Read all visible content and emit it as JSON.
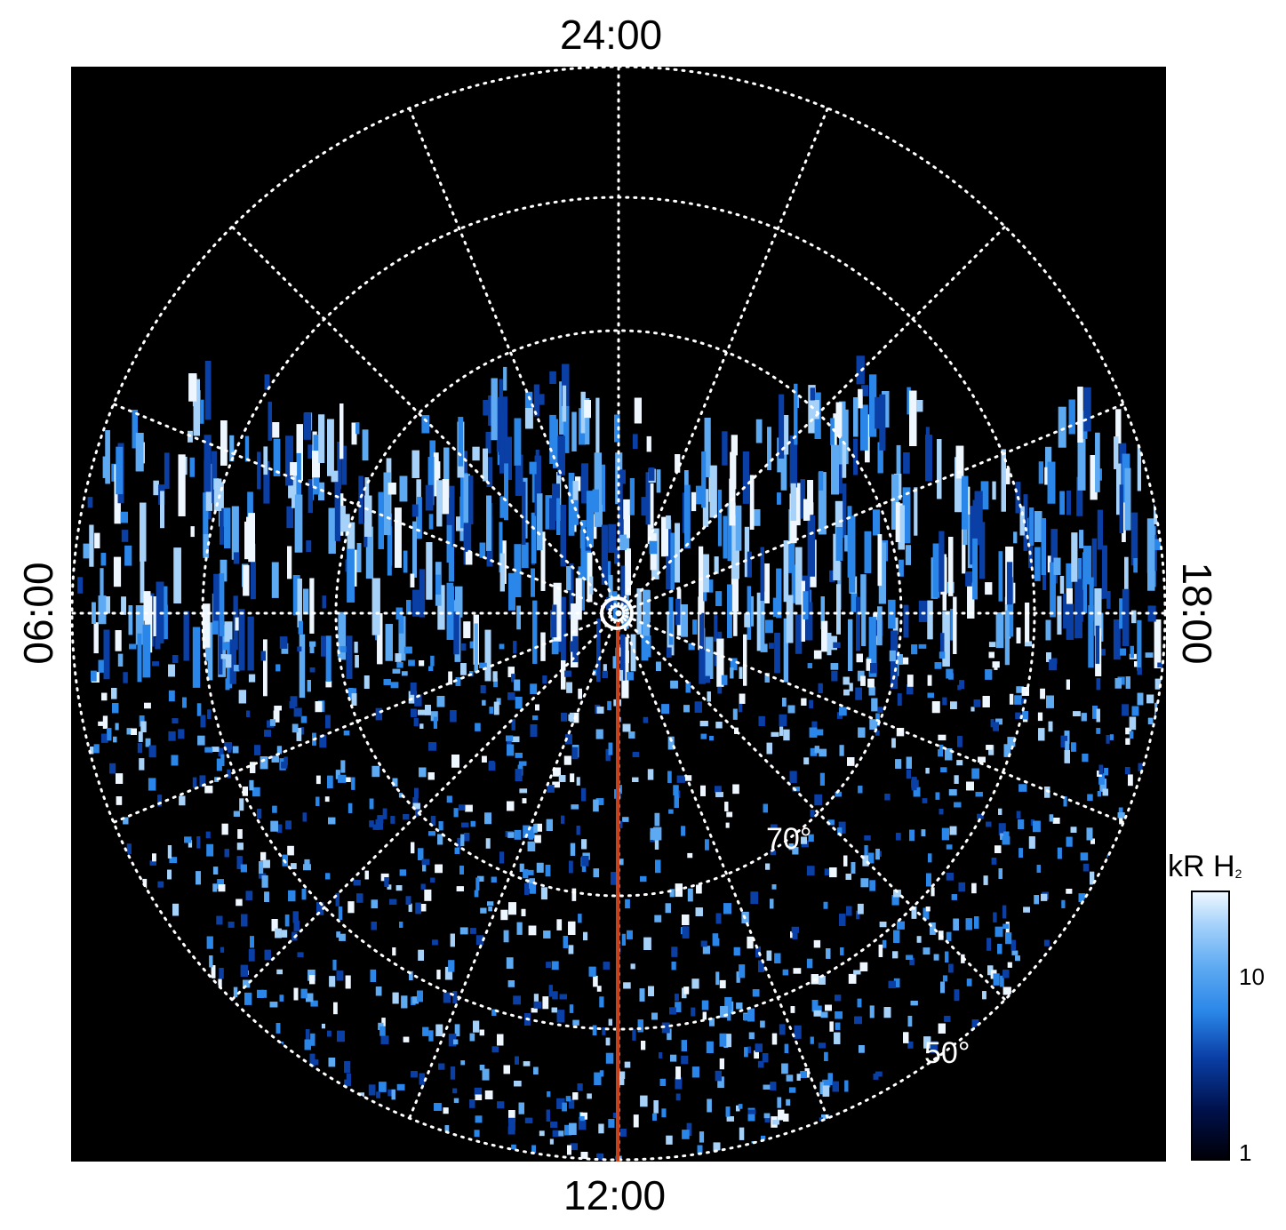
{
  "local_time_labels": {
    "top": "24:00",
    "bottom": "12:00",
    "left": "06:00",
    "right": "18:00"
  },
  "latitude_labels": {
    "inner": "70°",
    "outer": "50°"
  },
  "colorbar": {
    "title_main": "kR H",
    "title_sub": "2",
    "ticks": [
      "10",
      "1"
    ],
    "colors": [
      "#000008",
      "#00104a",
      "#0a3fa6",
      "#2a86e8",
      "#5eaaf2",
      "#a6d2fa",
      "#eef7ff"
    ]
  },
  "colors": {
    "background": "#000000",
    "grid": "#ffffff",
    "meridian_line": "#c8401a"
  }
}
